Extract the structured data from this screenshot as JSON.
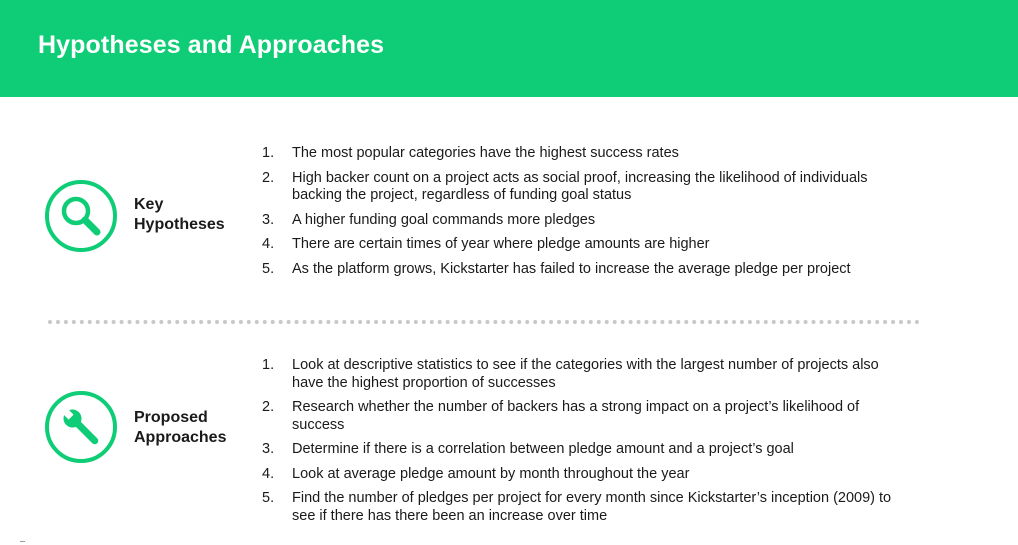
{
  "title": "Hypotheses and Approaches",
  "colors": {
    "accent": "#0fcd76",
    "text": "#1a1a1a",
    "divider": "#c8c8c8"
  },
  "hypotheses": {
    "icon": "magnifier-icon",
    "label_line1": "Key",
    "label_line2": "Hypotheses",
    "items": [
      {
        "num": "1.",
        "text": "The most popular categories have the highest success rates"
      },
      {
        "num": "2.",
        "text": "High backer count on a project acts as social proof, increasing the likelihood of individuals backing the project, regardless of funding goal status"
      },
      {
        "num": "3.",
        "text": "A higher funding goal commands more pledges"
      },
      {
        "num": "4.",
        "text": "There are certain times of year where pledge amounts are higher"
      },
      {
        "num": "5.",
        "text": "As the platform grows, Kickstarter has failed to increase the average pledge per project"
      }
    ]
  },
  "approaches": {
    "icon": "wrench-icon",
    "label_line1": "Proposed",
    "label_line2": "Approaches",
    "items": [
      {
        "num": "1.",
        "text": "Look at descriptive statistics to see if the categories with the largest number of projects also have the highest proportion of successes"
      },
      {
        "num": "2.",
        "text": "Research whether the number of backers has a strong impact on a project’s likelihood of success"
      },
      {
        "num": "3.",
        "text": "Determine if there is a correlation between pledge amount and a project’s goal"
      },
      {
        "num": "4.",
        "text": "Look at average pledge amount by month throughout the year"
      },
      {
        "num": "5.",
        "text": "Find the number of pledges per project for every month since Kickstarter’s inception (2009) to see if there has there been an increase over time"
      }
    ]
  }
}
